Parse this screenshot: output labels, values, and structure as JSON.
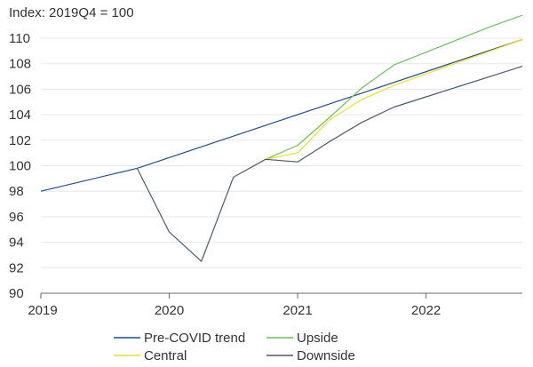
{
  "chart_data": {
    "type": "line",
    "ylabel": "Index: 2019Q4 = 100",
    "xlabel": "",
    "x_ticks": [
      "2019",
      "2020",
      "2021",
      "2022"
    ],
    "ylim": [
      90,
      110
    ],
    "y_ticks": [
      90,
      92,
      94,
      96,
      98,
      100,
      102,
      104,
      106,
      108,
      110
    ],
    "grid": "horizontal",
    "legend_position": "bottom",
    "series": [
      {
        "name": "Pre-COVID trend",
        "color": "#1f4e8c",
        "points": [
          [
            2019.0,
            98.0
          ],
          [
            2019.75,
            99.8
          ],
          [
            2022.75,
            109.9
          ]
        ]
      },
      {
        "name": "Upside",
        "color": "#6abf5e",
        "points": [
          [
            2020.75,
            100.5
          ],
          [
            2021.0,
            101.6
          ],
          [
            2021.25,
            103.8
          ],
          [
            2021.5,
            106.1
          ],
          [
            2021.75,
            107.9
          ],
          [
            2022.0,
            108.9
          ],
          [
            2022.25,
            109.9
          ],
          [
            2022.5,
            110.9
          ],
          [
            2022.75,
            111.8
          ]
        ]
      },
      {
        "name": "Central",
        "color": "#f2dc2e",
        "points": [
          [
            2020.75,
            100.5
          ],
          [
            2021.0,
            101.0
          ],
          [
            2021.25,
            103.6
          ],
          [
            2021.5,
            105.2
          ],
          [
            2021.75,
            106.3
          ],
          [
            2022.0,
            107.2
          ],
          [
            2022.25,
            108.1
          ],
          [
            2022.5,
            109.0
          ],
          [
            2022.75,
            109.9
          ]
        ]
      },
      {
        "name": "Downside",
        "color": "#4a5a6e",
        "points": [
          [
            2019.75,
            99.8
          ],
          [
            2020.0,
            94.8
          ],
          [
            2020.25,
            92.5
          ],
          [
            2020.5,
            99.1
          ],
          [
            2020.75,
            100.5
          ],
          [
            2021.0,
            100.3
          ],
          [
            2021.25,
            101.9
          ],
          [
            2021.5,
            103.4
          ],
          [
            2021.75,
            104.6
          ],
          [
            2022.0,
            105.4
          ],
          [
            2022.25,
            106.2
          ],
          [
            2022.5,
            107.0
          ],
          [
            2022.75,
            107.8
          ]
        ]
      }
    ]
  }
}
